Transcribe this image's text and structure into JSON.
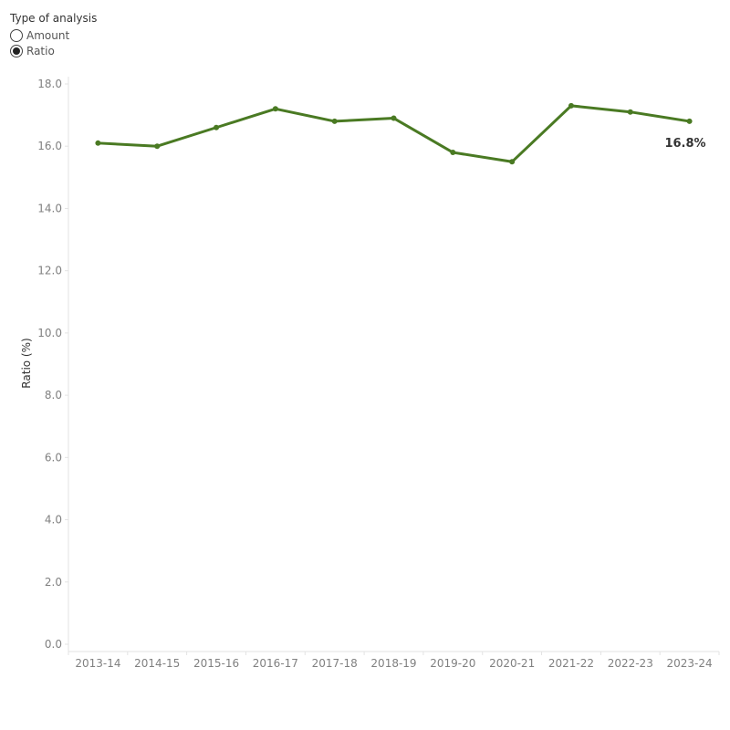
{
  "filter": {
    "title": "Type of analysis",
    "options": [
      {
        "label": "Amount",
        "selected": false
      },
      {
        "label": "Ratio",
        "selected": true
      }
    ]
  },
  "chart_data": {
    "type": "line",
    "title": "",
    "xlabel": "",
    "ylabel": "Ratio (%)",
    "categories": [
      "2013-14",
      "2014-15",
      "2015-16",
      "2016-17",
      "2017-18",
      "2018-19",
      "2019-20",
      "2020-21",
      "2021-22",
      "2022-23",
      "2023-24"
    ],
    "series": [
      {
        "values": [
          16.1,
          16.0,
          16.6,
          17.2,
          16.8,
          16.9,
          15.8,
          15.5,
          17.3,
          17.1,
          16.8
        ],
        "end_label": "16.8%"
      }
    ],
    "ylim": [
      0,
      18
    ],
    "yticks": [
      "0.0",
      "2.0",
      "4.0",
      "6.0",
      "8.0",
      "10.0",
      "12.0",
      "14.0",
      "16.0",
      "18.0"
    ],
    "grid": false,
    "colors": {
      "line": "#4a7a23",
      "axis": "#e3e3e3",
      "tick_text": "#808080"
    }
  }
}
